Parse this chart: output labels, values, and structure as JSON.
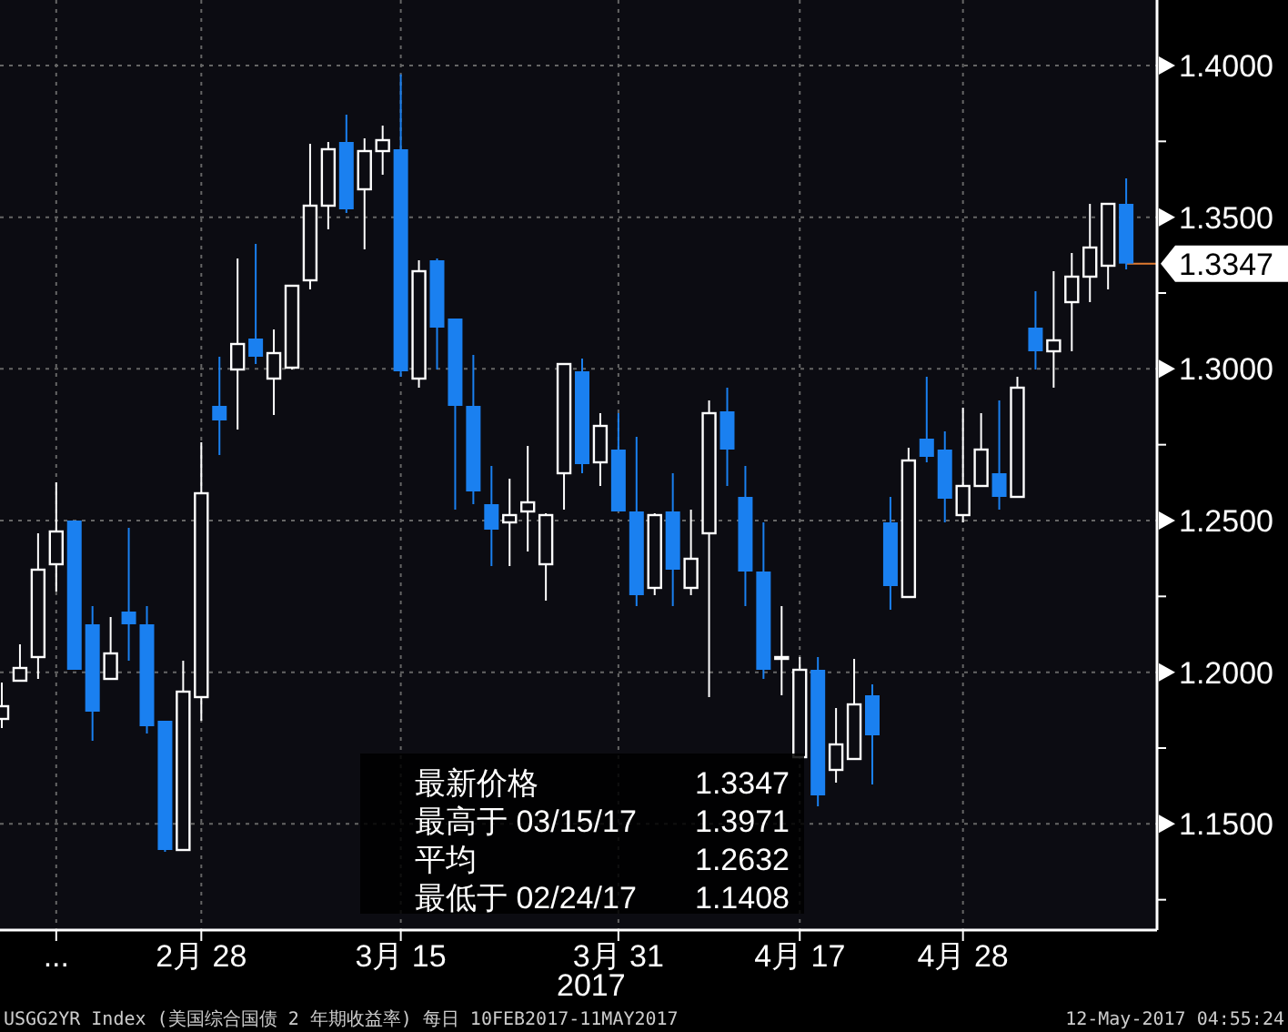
{
  "chart_data": {
    "type": "candlestick",
    "categories": [
      null,
      null,
      null,
      "...",
      null,
      null,
      null,
      null,
      null,
      null,
      null,
      "2月 28",
      null,
      null,
      null,
      null,
      null,
      null,
      null,
      null,
      null,
      null,
      "3月 15",
      null,
      null,
      null,
      null,
      null,
      null,
      null,
      null,
      null,
      null,
      null,
      "3月 31",
      null,
      null,
      null,
      null,
      null,
      null,
      null,
      null,
      null,
      "4月 17",
      null,
      null,
      null,
      null,
      null,
      null,
      null,
      null,
      "4月 28",
      null,
      null,
      null,
      null,
      null,
      null,
      null,
      null,
      null
    ],
    "ohlc": [
      [
        1.1846,
        1.1966,
        1.1816,
        1.1888
      ],
      [
        1.1972,
        1.2092,
        1.1972,
        1.2014
      ],
      [
        1.205,
        1.2458,
        1.1978,
        1.2338
      ],
      [
        1.2356,
        1.2626,
        1.2266,
        1.2464
      ],
      [
        1.25,
        1.25,
        1.2008,
        1.2008
      ],
      [
        1.2158,
        1.2218,
        1.1774,
        1.187
      ],
      [
        1.1978,
        1.2182,
        1.1978,
        1.2062
      ],
      [
        1.22,
        1.2476,
        1.2038,
        1.2158
      ],
      [
        1.2158,
        1.2218,
        1.1798,
        1.1822
      ],
      [
        1.184,
        1.184,
        1.1408,
        1.1414
      ],
      [
        1.1414,
        1.2038,
        1.1414,
        1.1936
      ],
      [
        1.1918,
        1.2758,
        1.184,
        1.259
      ],
      [
        1.2878,
        1.304,
        1.2716,
        1.283
      ],
      [
        1.2998,
        1.3364,
        1.28,
        1.3082
      ],
      [
        1.31,
        1.3412,
        1.3016,
        1.304
      ],
      [
        1.2968,
        1.313,
        1.2848,
        1.3052
      ],
      [
        1.3004,
        1.3274,
        1.2998,
        1.3274
      ],
      [
        1.3292,
        1.3742,
        1.3262,
        1.3538
      ],
      [
        1.3538,
        1.3748,
        1.346,
        1.3724
      ],
      [
        1.3748,
        1.3838,
        1.3514,
        1.3526
      ],
      [
        1.3592,
        1.376,
        1.3394,
        1.3718
      ],
      [
        1.3718,
        1.3802,
        1.364,
        1.3754
      ],
      [
        1.3724,
        1.3971,
        1.2974,
        1.2992
      ],
      [
        1.2968,
        1.3358,
        1.2938,
        1.3322
      ],
      [
        1.3358,
        1.3364,
        1.2998,
        1.3136
      ],
      [
        1.3166,
        1.3166,
        1.2536,
        1.2878
      ],
      [
        1.2878,
        1.3046,
        1.2554,
        1.2596
      ],
      [
        1.2554,
        1.268,
        1.235,
        1.247
      ],
      [
        1.2494,
        1.2638,
        1.235,
        1.2518
      ],
      [
        1.253,
        1.2746,
        1.2398,
        1.256
      ],
      [
        1.2356,
        1.2524,
        1.2236,
        1.2518
      ],
      [
        1.2656,
        1.3016,
        1.2536,
        1.3016
      ],
      [
        1.2992,
        1.3034,
        1.2656,
        1.2686
      ],
      [
        1.2692,
        1.2854,
        1.2614,
        1.2812
      ],
      [
        1.2734,
        1.2854,
        1.253,
        1.253
      ],
      [
        1.253,
        1.2776,
        1.2218,
        1.2254
      ],
      [
        1.2278,
        1.2524,
        1.2254,
        1.2518
      ],
      [
        1.253,
        1.2656,
        1.2218,
        1.2338
      ],
      [
        1.2278,
        1.2536,
        1.2254,
        1.2374
      ],
      [
        1.2458,
        1.2896,
        1.1918,
        1.2854
      ],
      [
        1.286,
        1.2938,
        1.2614,
        1.2734
      ],
      [
        1.2578,
        1.268,
        1.2218,
        1.2332
      ],
      [
        1.2332,
        1.2494,
        1.1978,
        1.2008
      ],
      [
        1.205,
        1.2218,
        1.1924,
        1.205
      ],
      [
        1.172,
        1.205,
        1.172,
        1.2008
      ],
      [
        1.2008,
        1.205,
        1.1558,
        1.1594
      ],
      [
        1.1678,
        1.1882,
        1.1636,
        1.1762
      ],
      [
        1.1714,
        1.2044,
        1.1714,
        1.1894
      ],
      [
        1.1924,
        1.196,
        1.163,
        1.1792
      ],
      [
        1.2494,
        1.2578,
        1.2206,
        1.2284
      ],
      [
        1.2248,
        1.274,
        1.2248,
        1.2698
      ],
      [
        1.277,
        1.2974,
        1.2692,
        1.271
      ],
      [
        1.2734,
        1.2794,
        1.2494,
        1.2572
      ],
      [
        1.2518,
        1.2872,
        1.2494,
        1.2614
      ],
      [
        1.2614,
        1.2854,
        1.2614,
        1.2734
      ],
      [
        1.2656,
        1.2896,
        1.2536,
        1.2578
      ],
      [
        1.2578,
        1.2974,
        1.2578,
        1.2938
      ],
      [
        1.3136,
        1.3256,
        1.2998,
        1.3058
      ],
      [
        1.3058,
        1.3322,
        1.2938,
        1.3094
      ],
      [
        1.322,
        1.3382,
        1.3058,
        1.3304
      ],
      [
        1.3304,
        1.3544,
        1.322,
        1.34
      ],
      [
        1.334,
        1.3544,
        1.3262,
        1.3544
      ],
      [
        1.3544,
        1.3628,
        1.3328,
        1.3347
      ]
    ],
    "colors": [
      "#ffffff",
      "#ffffff",
      "#ffffff",
      "#ffffff",
      "#1a80f0",
      "#1a80f0",
      "#ffffff",
      "#1a80f0",
      "#1a80f0",
      "#1a80f0",
      "#ffffff",
      "#ffffff",
      "#1a80f0",
      "#ffffff",
      "#1a80f0",
      "#ffffff",
      "#ffffff",
      "#ffffff",
      "#ffffff",
      "#1a80f0",
      "#ffffff",
      "#ffffff",
      "#1a80f0",
      "#ffffff",
      "#1a80f0",
      "#1a80f0",
      "#1a80f0",
      "#1a80f0",
      "#ffffff",
      "#ffffff",
      "#ffffff",
      "#ffffff",
      "#1a80f0",
      "#ffffff",
      "#1a80f0",
      "#1a80f0",
      "#ffffff",
      "#1a80f0",
      "#ffffff",
      "#ffffff",
      "#1a80f0",
      "#1a80f0",
      "#1a80f0",
      "#ffffff",
      "#ffffff",
      "#1a80f0",
      "#ffffff",
      "#ffffff",
      "#1a80f0",
      "#1a80f0",
      "#ffffff",
      "#1a80f0",
      "#1a80f0",
      "#ffffff",
      "#ffffff",
      "#1a80f0",
      "#ffffff",
      "#1a80f0",
      "#ffffff",
      "#ffffff",
      "#ffffff",
      "#ffffff",
      "#1a80f0"
    ],
    "ylim": [
      1.115,
      1.4216
    ],
    "yticks": [
      {
        "value": 1.125,
        "label": null
      },
      {
        "value": 1.15,
        "label": "1.1500"
      },
      {
        "value": 1.175,
        "label": null
      },
      {
        "value": 1.2,
        "label": "1.2000"
      },
      {
        "value": 1.225,
        "label": null
      },
      {
        "value": 1.25,
        "label": "1.2500"
      },
      {
        "value": 1.275,
        "label": null
      },
      {
        "value": 1.3,
        "label": "1.3000"
      },
      {
        "value": 1.325,
        "label": null
      },
      {
        "value": 1.35,
        "label": "1.3500"
      },
      {
        "value": 1.375,
        "label": null
      },
      {
        "value": 1.4,
        "label": "1.4000"
      }
    ],
    "grid": true,
    "ref_lines": [
      {
        "axis": "y",
        "value": 1.3347,
        "label": "1.3347",
        "color": "#e07a30"
      }
    ],
    "annotations": [
      "最新价格 1.3347",
      "最高于 03/15/17 1.3971",
      "平均 1.2632",
      "最低于 02/24/17 1.1408",
      "2017",
      "USGG2YR Index (美国综合国债 2 年期收益率)  每日 10FEB2017-11MAY2017",
      "12-May-2017 04:55:24"
    ]
  }
}
